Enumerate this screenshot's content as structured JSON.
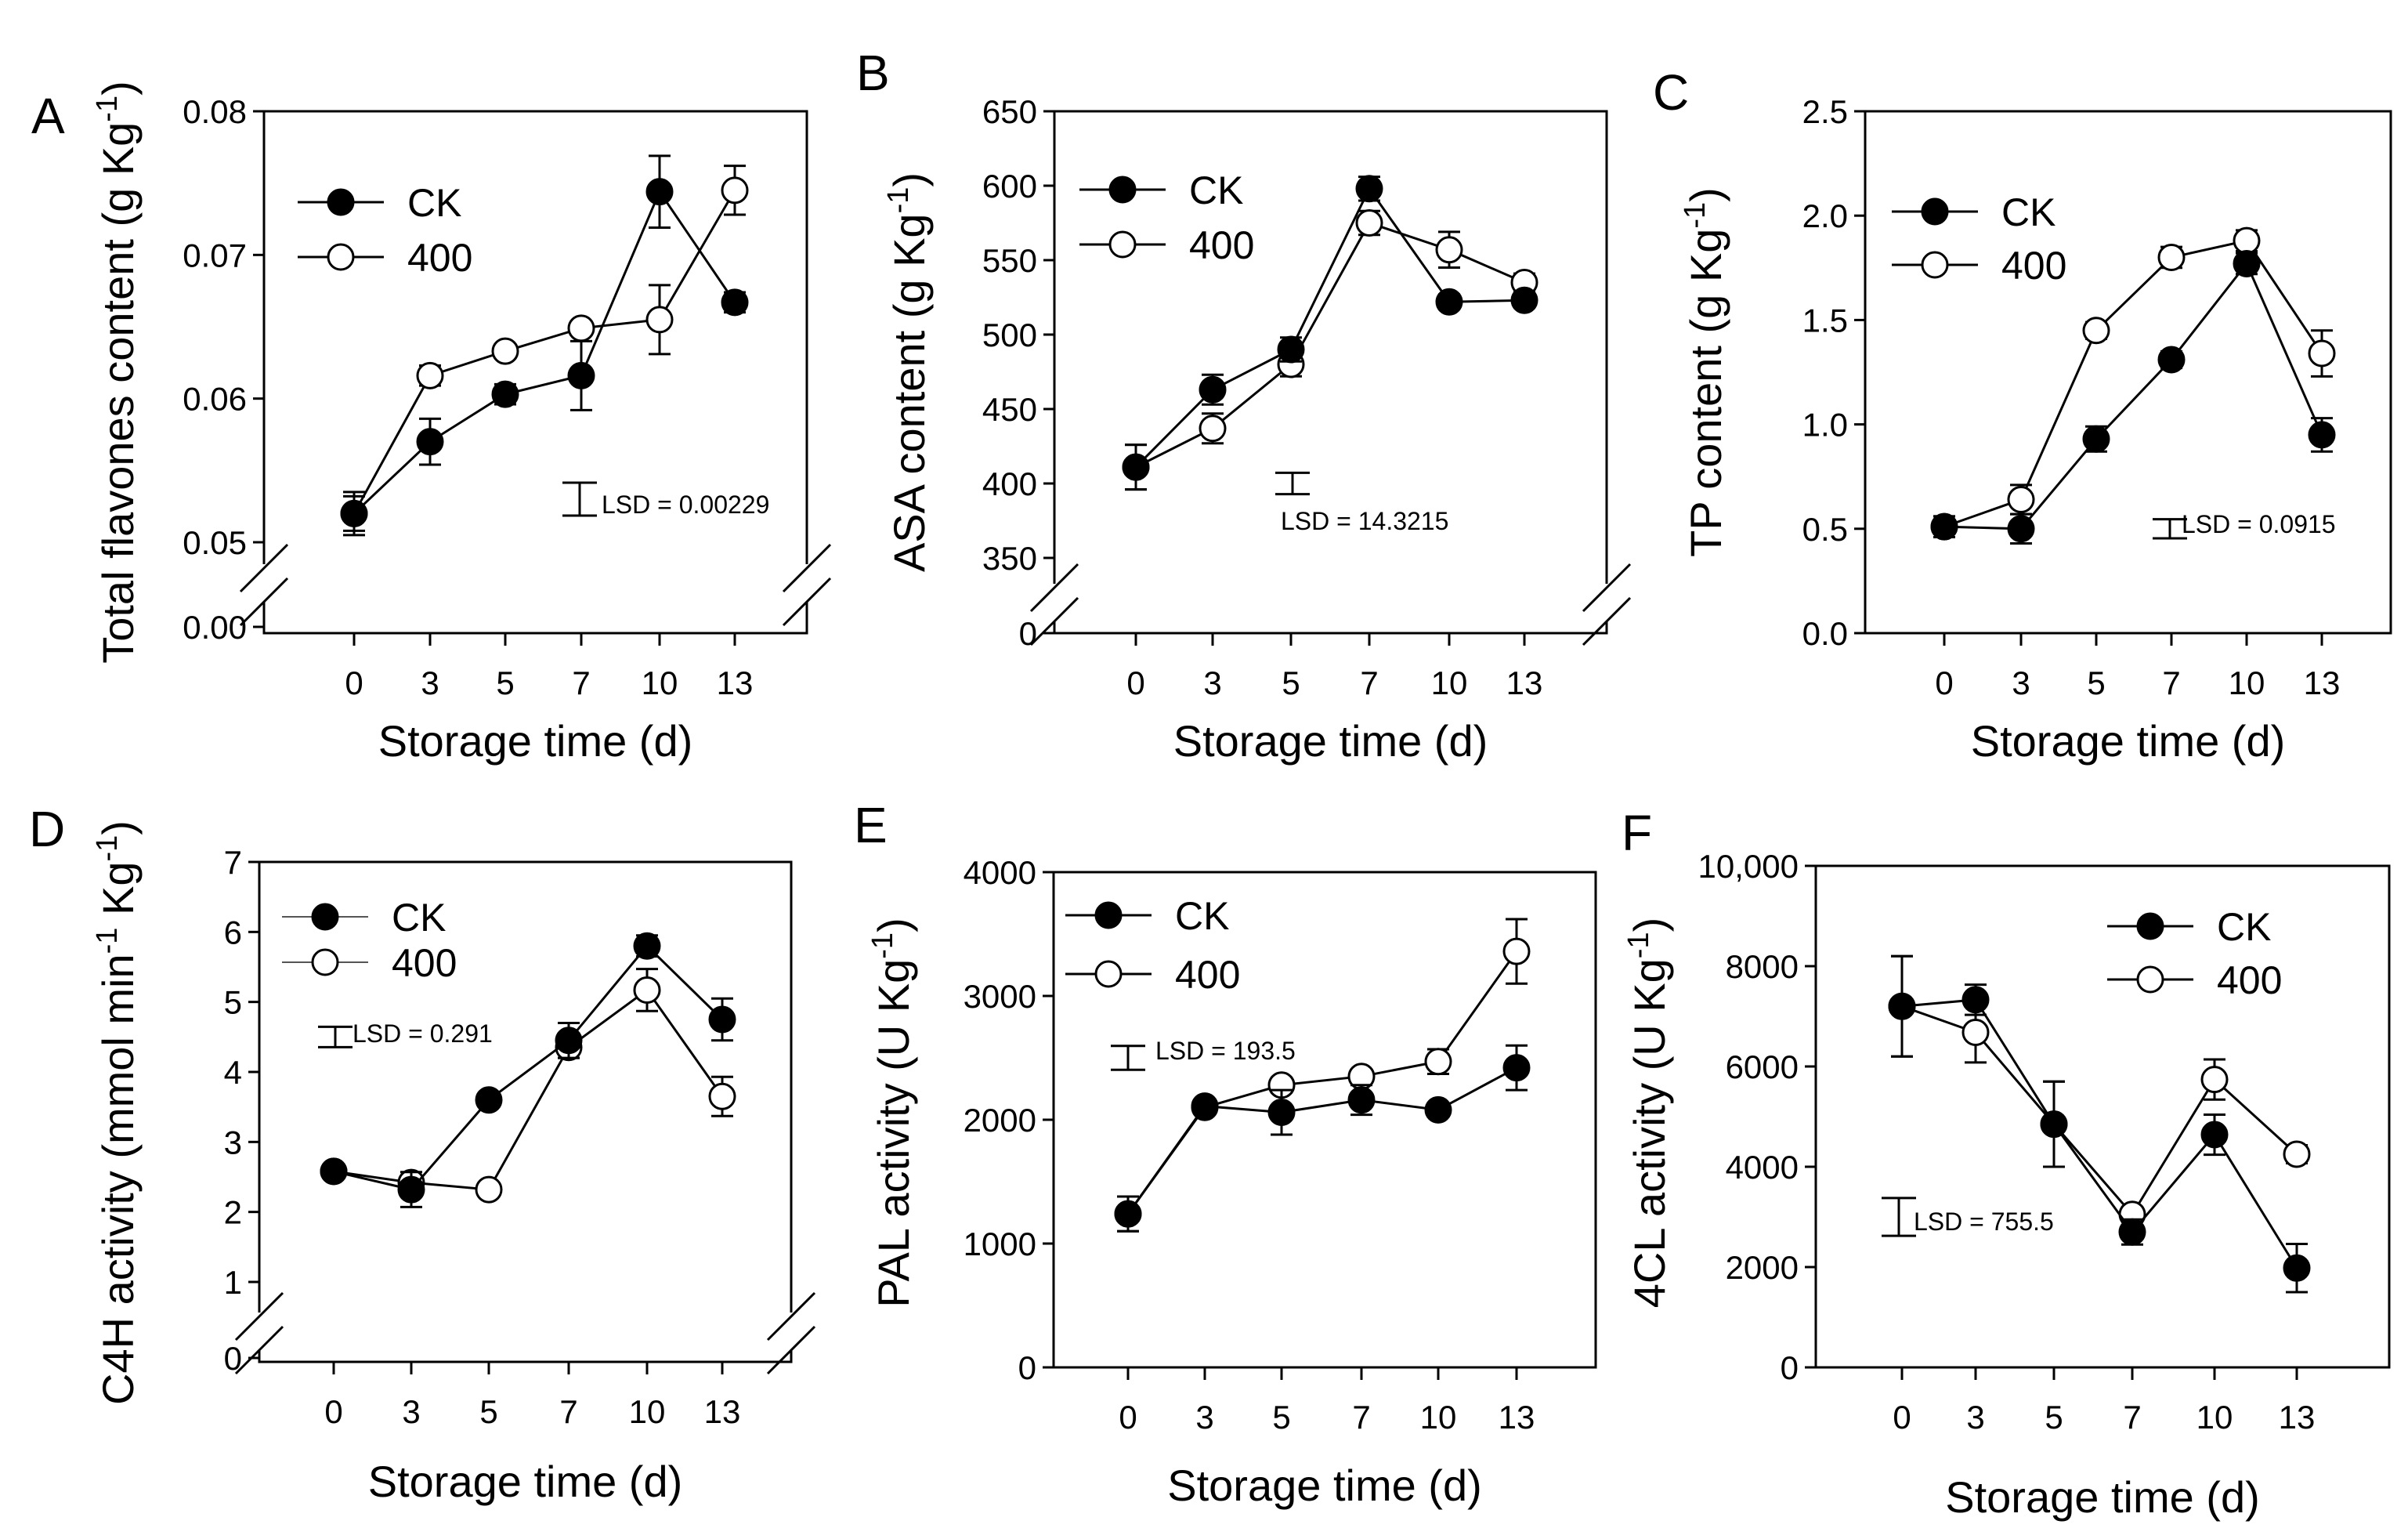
{
  "chart_data": [
    {
      "panel": "A",
      "type": "line",
      "ylabel_main": "Total flavones content (g Kg",
      "ylabel_sup": "-1",
      "ylabel_tail": ")",
      "xlabel": "Storage time (d)",
      "categories": [
        "0",
        "3",
        "5",
        "7",
        "10",
        "13"
      ],
      "y_ticks": [
        "0.05",
        "0.06",
        "0.07",
        "0.08"
      ],
      "y_zero_tick": "0.00",
      "ylim": [
        0.05,
        0.08
      ],
      "axis_break": true,
      "series": [
        {
          "name": "CK",
          "filled": true,
          "values": [
            0.052,
            0.057,
            0.0603,
            0.0616,
            0.0744,
            0.0667
          ],
          "errors": [
            0.0012,
            0.0016,
            0.0007,
            0.0024,
            0.0025,
            0.0007
          ]
        },
        {
          "name": "400",
          "filled": false,
          "values": [
            0.052,
            0.0616,
            0.0633,
            0.0649,
            0.0655,
            0.0745
          ],
          "errors": [
            0.0015,
            0.0007,
            0.0005,
            0.0004,
            0.0024,
            0.0017
          ]
        }
      ],
      "lsd": {
        "label": "LSD = 0.00229",
        "value": 0.00229,
        "center": 0.053
      }
    },
    {
      "panel": "B",
      "type": "line",
      "ylabel_main": "ASA content (g Kg",
      "ylabel_sup": "-1",
      "ylabel_tail": ")",
      "xlabel": "Storage time (d)",
      "categories": [
        "0",
        "3",
        "5",
        "7",
        "10",
        "13"
      ],
      "y_ticks": [
        "350",
        "400",
        "450",
        "500",
        "550",
        "600",
        "650"
      ],
      "y_zero_tick": "0",
      "ylim": [
        350,
        650
      ],
      "axis_break": true,
      "series": [
        {
          "name": "CK",
          "filled": true,
          "values": [
            411,
            463,
            490,
            598,
            522,
            523
          ],
          "errors": [
            15,
            10,
            8,
            8,
            5,
            5
          ]
        },
        {
          "name": "400",
          "filled": false,
          "values": [
            411,
            437,
            480,
            575,
            557,
            535
          ],
          "errors": [
            15,
            10,
            8,
            8,
            12,
            6
          ]
        }
      ],
      "lsd": {
        "label": "LSD = 14.3215",
        "value": 14.3215,
        "center": 400
      }
    },
    {
      "panel": "C",
      "type": "line",
      "ylabel_main": "TP content (g Kg",
      "ylabel_sup": "-1",
      "ylabel_tail": ")",
      "xlabel": "Storage time (d)",
      "categories": [
        "0",
        "3",
        "5",
        "7",
        "10",
        "13"
      ],
      "y_ticks": [
        "0.0",
        "0.5",
        "1.0",
        "1.5",
        "2.0",
        "2.5"
      ],
      "ylim": [
        0,
        2.5
      ],
      "axis_break": false,
      "series": [
        {
          "name": "CK",
          "filled": true,
          "values": [
            0.51,
            0.5,
            0.93,
            1.31,
            1.77,
            0.95
          ],
          "errors": [
            0.05,
            0.07,
            0.06,
            0.04,
            0.05,
            0.08
          ]
        },
        {
          "name": "400",
          "filled": false,
          "values": [
            0.51,
            0.64,
            1.45,
            1.8,
            1.88,
            1.34
          ],
          "errors": [
            0.05,
            0.07,
            0.04,
            0.05,
            0.05,
            0.11
          ]
        }
      ],
      "lsd": {
        "label": "LSD = 0.0915",
        "value": 0.0915,
        "center": 0.5
      }
    },
    {
      "panel": "D",
      "type": "line",
      "ylabel_main": "C4H activity (mmol min",
      "ylabel_sup": "-1",
      "ylabel_mid": " Kg",
      "ylabel_sup2": "-1",
      "ylabel_tail": ")",
      "xlabel": "Storage time (d)",
      "categories": [
        "0",
        "3",
        "5",
        "7",
        "10",
        "13"
      ],
      "y_ticks": [
        "1",
        "2",
        "3",
        "4",
        "5",
        "6",
        "7"
      ],
      "y_zero_tick": "0",
      "ylim": [
        1,
        7
      ],
      "axis_break": true,
      "series": [
        {
          "name": "CK",
          "filled": true,
          "values": [
            2.58,
            2.32,
            3.6,
            4.45,
            5.8,
            4.75
          ],
          "errors": [
            0.1,
            0.25,
            0.1,
            0.25,
            0.15,
            0.3
          ]
        },
        {
          "name": "400",
          "filled": false,
          "values": [
            2.58,
            2.42,
            2.32,
            4.35,
            5.17,
            3.65
          ],
          "errors": [
            0.1,
            0.1,
            0.08,
            0.15,
            0.3,
            0.28
          ]
        }
      ],
      "lsd": {
        "label": "LSD = 0.291",
        "value": 0.291,
        "center": 4.5
      }
    },
    {
      "panel": "E",
      "type": "line",
      "ylabel_main": "PAL activity (U Kg",
      "ylabel_sup": "-1",
      "ylabel_tail": ")",
      "xlabel": "Storage time (d)",
      "categories": [
        "0",
        "3",
        "5",
        "7",
        "10",
        "13"
      ],
      "y_ticks": [
        "0",
        "1000",
        "2000",
        "3000",
        "4000"
      ],
      "ylim": [
        0,
        4000
      ],
      "axis_break": false,
      "series": [
        {
          "name": "CK",
          "filled": true,
          "values": [
            1240,
            2110,
            2060,
            2160,
            2080,
            2420
          ],
          "errors": [
            140,
            50,
            180,
            120,
            40,
            180
          ]
        },
        {
          "name": "400",
          "filled": false,
          "values": [
            1240,
            2100,
            2280,
            2350,
            2470,
            3360
          ],
          "errors": [
            140,
            40,
            60,
            50,
            100,
            260
          ]
        }
      ],
      "lsd": {
        "label": "LSD = 193.5",
        "value": 193.5,
        "center": 2500
      }
    },
    {
      "panel": "F",
      "type": "line",
      "ylabel_main": "4CL activity (U Kg",
      "ylabel_sup": "-1",
      "ylabel_tail": ")",
      "xlabel": "Storage time (d)",
      "categories": [
        "0",
        "3",
        "5",
        "7",
        "10",
        "13"
      ],
      "y_ticks": [
        "0",
        "2000",
        "4000",
        "6000",
        "8000",
        "10,000"
      ],
      "ylim": [
        0,
        10000
      ],
      "axis_break": false,
      "series": [
        {
          "name": "CK",
          "filled": true,
          "values": [
            7200,
            7330,
            4850,
            2700,
            4640,
            1980
          ],
          "errors": [
            1000,
            300,
            850,
            250,
            400,
            480
          ]
        },
        {
          "name": "400",
          "filled": false,
          "values": [
            7200,
            6680,
            4850,
            3050,
            5740,
            4250
          ],
          "errors": [
            1000,
            600,
            850,
            150,
            400,
            180
          ]
        }
      ],
      "lsd": {
        "label": "LSD = 755.5",
        "value": 755.5,
        "center": 3000
      }
    }
  ]
}
